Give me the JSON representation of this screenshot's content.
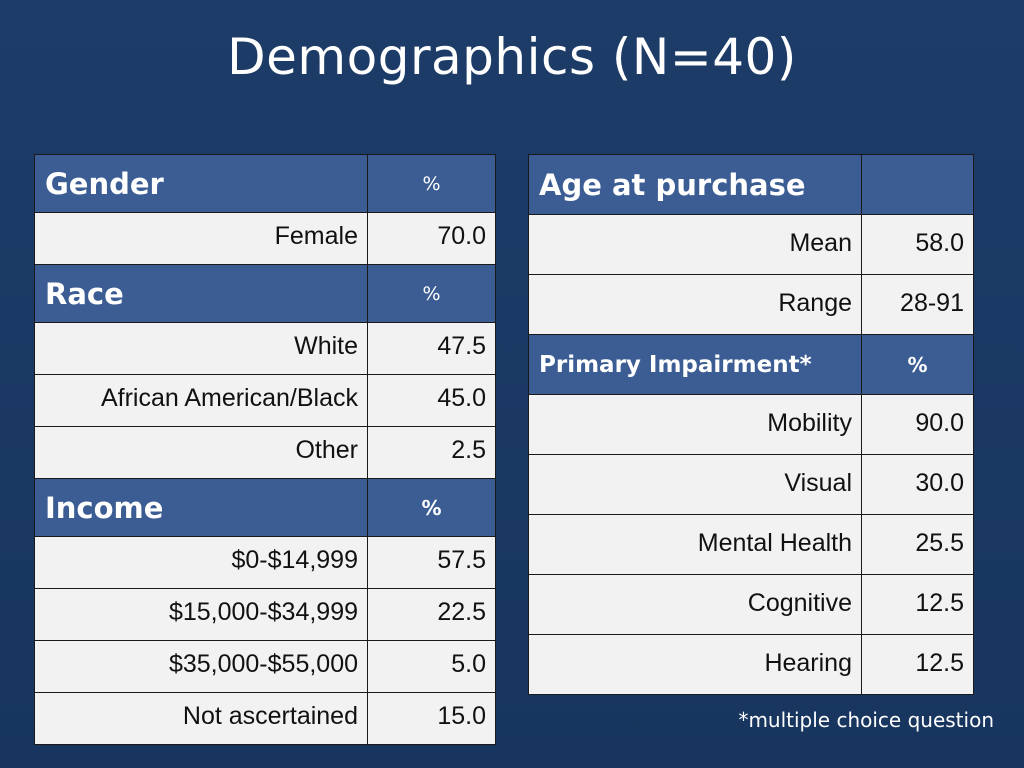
{
  "title": "Demographics (N=40)",
  "left_table": {
    "gender": {
      "header": "Gender",
      "pct": "%",
      "rows": [
        {
          "label": "Female",
          "value": "70.0"
        }
      ]
    },
    "race": {
      "header": "Race",
      "pct": "%",
      "rows": [
        {
          "label": "White",
          "value": "47.5"
        },
        {
          "label": "African American/Black",
          "value": "45.0"
        },
        {
          "label": "Other",
          "value": "2.5"
        }
      ]
    },
    "income": {
      "header": "Income",
      "pct": "%",
      "rows": [
        {
          "label": "$0-$14,999",
          "value": "57.5"
        },
        {
          "label": "$15,000-$34,999",
          "value": "22.5"
        },
        {
          "label": "$35,000-$55,000",
          "value": "5.0"
        },
        {
          "label": "Not ascertained",
          "value": "15.0"
        }
      ]
    }
  },
  "right_table": {
    "age": {
      "header": "Age at purchase",
      "pct": "",
      "rows": [
        {
          "label": "Mean",
          "value": "58.0"
        },
        {
          "label": "Range",
          "value": "28-91"
        }
      ]
    },
    "impairment": {
      "header": "Primary Impairment*",
      "pct": "%",
      "rows": [
        {
          "label": "Mobility",
          "value": "90.0"
        },
        {
          "label": "Visual",
          "value": "30.0"
        },
        {
          "label": "Mental Health",
          "value": "25.5"
        },
        {
          "label": "Cognitive",
          "value": "12.5"
        },
        {
          "label": "Hearing",
          "value": "12.5"
        }
      ]
    }
  },
  "footnote": "*multiple choice question",
  "colors": {
    "background": "#1d3c68",
    "header_fill": "#3b5d93",
    "cell_fill": "#f2f2f2"
  }
}
